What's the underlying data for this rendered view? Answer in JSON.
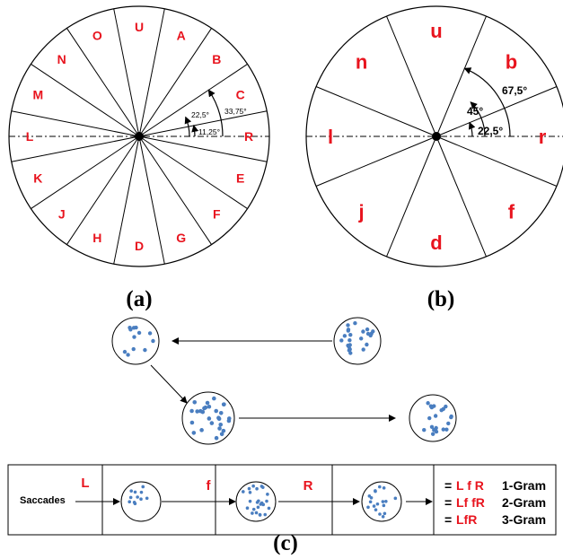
{
  "colors": {
    "accent": "#e8141e",
    "dot": "#4a7ec0",
    "line": "#000000"
  },
  "wheel_a": {
    "caption": "(a)",
    "labels": [
      "R",
      "C",
      "B",
      "A",
      "U",
      "O",
      "N",
      "M",
      "L",
      "K",
      "J",
      "H",
      "D",
      "G",
      "F",
      "E"
    ],
    "angles": [
      "11,25°",
      "22,5°",
      "33,75°"
    ]
  },
  "wheel_b": {
    "caption": "(b)",
    "labels": [
      "r",
      "b",
      "u",
      "n",
      "l",
      "j",
      "d",
      "f"
    ],
    "angles": [
      "22,5°",
      "45°",
      "67,5°"
    ]
  },
  "flow": {
    "caption": "(c)",
    "saccades_label": "Saccades",
    "steps": [
      "L",
      "f",
      "R"
    ],
    "grams": [
      {
        "eq": "=",
        "seq": "L f R",
        "name": "1-Gram"
      },
      {
        "eq": "=",
        "seq": "Lf fR",
        "name": "2-Gram"
      },
      {
        "eq": "=",
        "seq": "LfR",
        "name": "3-Gram"
      }
    ]
  }
}
